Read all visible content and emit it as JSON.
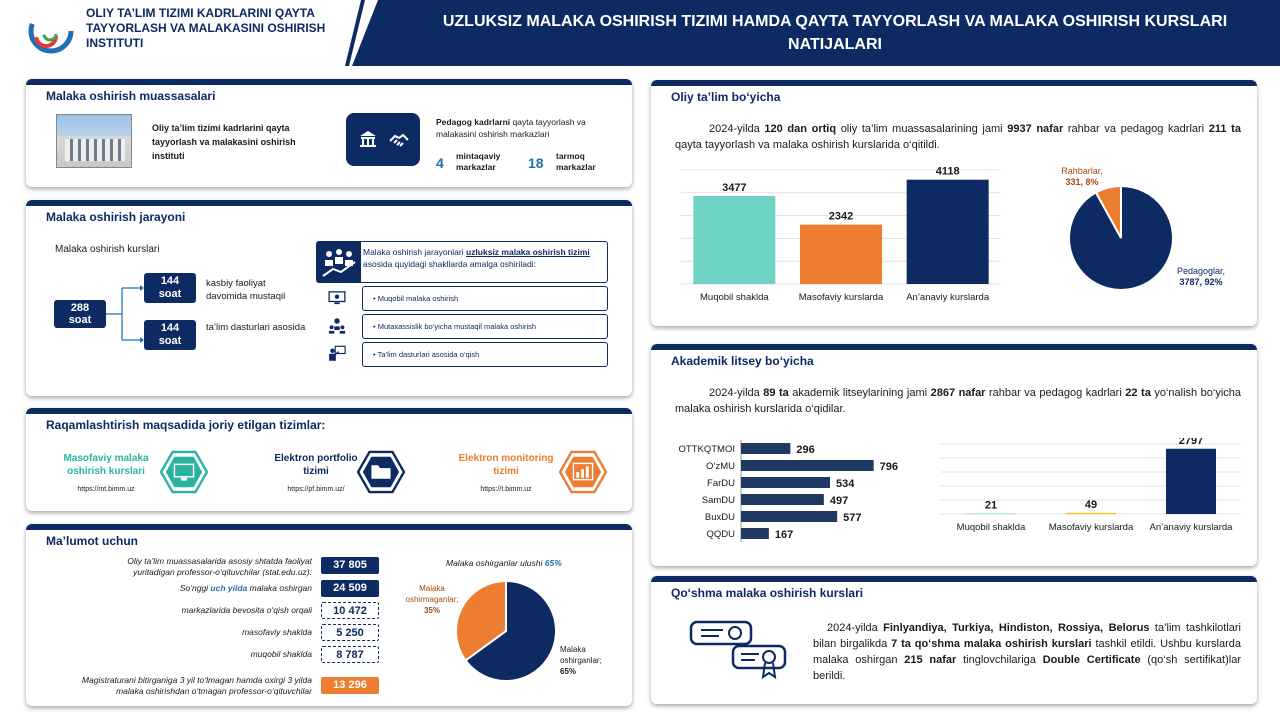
{
  "header": {
    "institute": "OLIY TA’LIM TIZIMI KADRLARINI QAYTA TAYYORLASH VA MALAKASINI OSHIRISH INSTITUTI",
    "title": "UZLUKSIZ MALAKA OSHIRISH TIZIMI HAMDA QAYTA TAYYORLASH VA MALAKA OSHIRISH KURSLARI NATIJALARI"
  },
  "institutions": {
    "title": "Malaka oshirish muassasalari",
    "institute_name": "Oliy ta’lim tizimi kadrlarini qayta tayyorlash va malakasini oshirish instituti",
    "centers_bold": "Pedagog kadrlarni",
    "centers_text": " qayta tayyorlash va malakasini oshirish markazlari",
    "regional_count": "4",
    "regional_label": "mintaqaviy markazlar",
    "sector_count": "18",
    "sector_label": "tarmoq markazlar"
  },
  "process": {
    "title": "Malaka oshirish jarayoni",
    "courses_label": "Malaka oshirish kurslari",
    "total_hours": "288",
    "total_unit": "soat",
    "part1_hours": "144",
    "part1_unit": "soat",
    "part1_label": "kasbiy faoliyat davomida mustaqil",
    "part2_hours": "144",
    "part2_unit": "soat",
    "part2_label": "ta’lim dasturlari asosida",
    "intro_pre": "Malaka oshirish jarayonlari ",
    "intro_link": "uzluksiz malaka oshirish tizimi",
    "intro_post": " asosida quyidagi shakllarda amalga oshiriladi:",
    "forms": [
      "• Muqobil malaka oshirish",
      "• Mutaxassislik bo‘yicha mustaqil malaka oshirish",
      "• Ta’lim dasturlari asosida o‘qish"
    ]
  },
  "digital": {
    "title": "Raqamlashtirish maqsadida joriy etilgan tizimlar:",
    "systems": [
      {
        "name": "Masofaviy malaka oshirish kurslari",
        "url": "https://mt.bimm.uz",
        "color": "#2bb3a0",
        "icon": "monitor-icon"
      },
      {
        "name": "Elektron portfolio tizimi",
        "url": "https://pf.bimm.uz/",
        "color": "#0e2a63",
        "icon": "folder-icon"
      },
      {
        "name": "Elektron monitoring tizimi",
        "url": "https://t.bimm.uz",
        "color": "#ed7d31",
        "icon": "chart-icon"
      }
    ]
  },
  "info": {
    "title": "Ma’lumot uchun",
    "rows": [
      {
        "label": "Oliy ta’lim muassasalarida asosiy shtatda faoliyat yuritadigan professor-o‘qituvchilar (stat.edu.uz):",
        "value": "37 805"
      },
      {
        "label_pre": "So‘nggi ",
        "label_hl": "uch yilda",
        "label_post": " malaka oshirgan",
        "value": "24 509"
      },
      {
        "label": "markazlarida bevosita o‘qish orqali",
        "value": "10 472"
      },
      {
        "label": "masofaviy shaklda",
        "value": "5 250"
      },
      {
        "label": "muqobil shaklda",
        "value": "8 787"
      },
      {
        "label": "Magistraturani bitirganiga 3 yil to‘lmagan hamda oxirgi 3 yilda malaka oshirishdan o‘tmagan professor-o‘qituvchilar",
        "value": "13 296"
      }
    ],
    "pie_title_pre": "Malaka oshirganlar ulushi ",
    "pie_title_val": "65%",
    "pie_not_label": "Malaka oshirmaganlar;",
    "pie_not_pct": "35%",
    "pie_yes_label": "Malaka oshirganlar;",
    "pie_yes_pct": "65%"
  },
  "higher_ed": {
    "title": "Oliy ta’lim bo‘yicha",
    "text_parts": [
      "2024-yilda ",
      "120 dan ortiq",
      " oliy ta’lim muassasalarining jami ",
      "9937 nafar",
      " rahbar va pedagog kadrlari ",
      "211 ta",
      " qayta tayyorlash va malaka oshirish kurslarida o‘qitildi."
    ],
    "pie_leaders_label": "Rahbarlar,",
    "pie_leaders_val": "331, 8%",
    "pie_ped_label": "Pedagoglar,",
    "pie_ped_val": "3787, 92%"
  },
  "academic": {
    "title": "Akademik litsey bo‘yicha",
    "text_parts": [
      "2024-yilda ",
      "89 ta",
      " akademik litseylarining jami ",
      "2867 nafar",
      " rahbar va pedagog kadrlari ",
      "22 ta",
      " yo‘nalish bo‘yicha malaka oshirish kurslarida o‘qidilar."
    ]
  },
  "joint": {
    "title": "Qo‘shma malaka oshirish kurslari",
    "text_parts": [
      "2024-yilda ",
      "Finlyandiya, Turkiya, Hindiston, Rossiya, Belorus",
      " ta’lim tashkilotlari bilan birgalikda ",
      "7 ta qo‘shma malaka oshirish kurslari",
      " tashkil etildi. Ushbu kurslarda malaka oshirgan ",
      "215 nafar",
      " tinglovchilariga ",
      "Double Certificate",
      " (qo‘sh sertifikat)lar berildi."
    ]
  },
  "chart_data": [
    {
      "type": "bar",
      "id": "higher-ed-bars",
      "categories": [
        "Muqobil shaklda",
        "Masofaviy kurslarda",
        "An’anaviy kurslarda"
      ],
      "values": [
        3477,
        2342,
        4118
      ],
      "colors": [
        "#6fd3c4",
        "#ed7d31",
        "#0e2a63"
      ],
      "ylim": [
        0,
        4500
      ],
      "grid": true
    },
    {
      "type": "pie",
      "id": "higher-ed-pie",
      "labels": [
        "Rahbarlar",
        "Pedagoglar"
      ],
      "values": [
        331,
        3787
      ],
      "percent": [
        8,
        92
      ],
      "colors": [
        "#ed7d31",
        "#0e2a63"
      ]
    },
    {
      "type": "bar",
      "orientation": "horizontal",
      "id": "lyceum-hbars",
      "categories": [
        "OTTKQTMOI",
        "O‘zMU",
        "FarDU",
        "SamDU",
        "BuxDU",
        "QQDU"
      ],
      "values": [
        296,
        796,
        534,
        497,
        577,
        167
      ],
      "color": "#1f3864",
      "xlim": [
        0,
        900
      ]
    },
    {
      "type": "bar",
      "id": "lyceum-bars",
      "categories": [
        "Muqobil shaklda",
        "Masofaviy kurslarda",
        "An’anaviy kurslarda"
      ],
      "values": [
        21,
        49,
        2797
      ],
      "colors": [
        "#6fd3c4",
        "#ffc000",
        "#0e2a63"
      ],
      "ylim": [
        0,
        3000
      ],
      "grid": true
    },
    {
      "type": "pie",
      "id": "info-pie",
      "labels": [
        "Malaka oshirganlar",
        "Malaka oshirmaganlar"
      ],
      "values": [
        65,
        35
      ],
      "colors": [
        "#0e2a63",
        "#ed7d31"
      ]
    }
  ]
}
